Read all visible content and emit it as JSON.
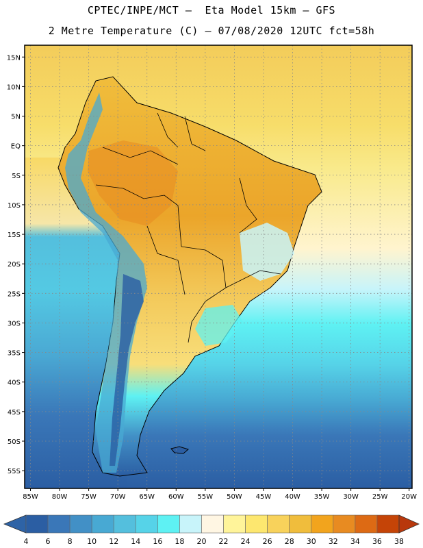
{
  "header": {
    "line1": "CPTEC/INPE/MCT –  Eta Model 15km – GFS",
    "line2": "2 Metre Temperature (C) – 07/08/2020 12UTC fct=58h"
  },
  "map": {
    "lat_labels": [
      "15N",
      "10N",
      "5N",
      "EQ",
      "5S",
      "10S",
      "15S",
      "20S",
      "25S",
      "30S",
      "35S",
      "40S",
      "45S",
      "50S",
      "55S"
    ],
    "lat_values": [
      15,
      10,
      5,
      0,
      -5,
      -10,
      -15,
      -20,
      -25,
      -30,
      -35,
      -40,
      -45,
      -50,
      -55
    ],
    "lon_labels": [
      "85W",
      "80W",
      "75W",
      "70W",
      "65W",
      "60W",
      "55W",
      "50W",
      "45W",
      "40W",
      "35W",
      "30W",
      "25W",
      "20W"
    ],
    "lon_values": [
      -85,
      -80,
      -75,
      -70,
      -65,
      -60,
      -55,
      -50,
      -45,
      -40,
      -35,
      -30,
      -25,
      -20
    ],
    "lat_range": [
      -58,
      17
    ],
    "lon_range": [
      -86,
      -19.5
    ]
  },
  "colorbar": {
    "labels": [
      "4",
      "6",
      "8",
      "10",
      "12",
      "14",
      "16",
      "18",
      "20",
      "22",
      "24",
      "26",
      "28",
      "30",
      "32",
      "34",
      "36",
      "38"
    ],
    "colors": [
      "#2b5ea3",
      "#3a77b8",
      "#4290c6",
      "#48a9d3",
      "#54bfdd",
      "#56d3e8",
      "#5ef1f3",
      "#c8f4fa",
      "#fff6e3",
      "#fff49a",
      "#fde76f",
      "#f8d25b",
      "#f0bd3c",
      "#f2a41d",
      "#e88b21",
      "#dd6a14",
      "#c54407"
    ],
    "low_arrow_color": "#2e63a6",
    "high_arrow_color": "#b8380c"
  }
}
